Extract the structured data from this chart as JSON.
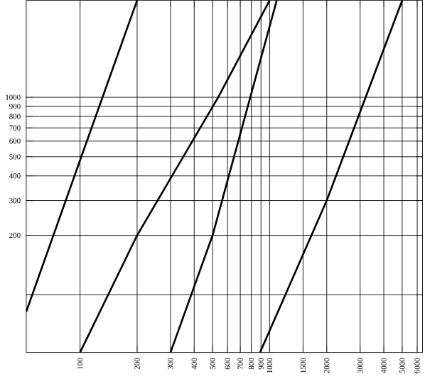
{
  "chart_data": {
    "type": "line",
    "log": "xy",
    "grid": true,
    "marker": "none",
    "line_style": "solid",
    "xlim": [
      52,
      6400
    ],
    "ylim": [
      51,
      3100
    ],
    "xticks": [
      100,
      200,
      300,
      400,
      500,
      600,
      700,
      800,
      900,
      1000,
      1500,
      2000,
      3000,
      4000,
      5000,
      6000
    ],
    "yticks": [
      {
        "value": 100,
        "label": null
      },
      200,
      300,
      400,
      500,
      600,
      700,
      800,
      900,
      1000
    ],
    "series": [
      {
        "color": "#000000",
        "x": [
          52,
          100,
          200
        ],
        "values": [
          82,
          480,
          3100
        ]
      },
      {
        "color": "#000000",
        "x": [
          100,
          200,
          535,
          1000
        ],
        "values": [
          51,
          200,
          1000,
          3100
        ]
      },
      {
        "color": "#000000",
        "x": [
          300,
          500,
          1090
        ],
        "values": [
          51,
          200,
          3100
        ]
      },
      {
        "color": "#000000",
        "x": [
          890,
          2000,
          5000
        ],
        "values": [
          51,
          300,
          3100
        ]
      }
    ]
  }
}
